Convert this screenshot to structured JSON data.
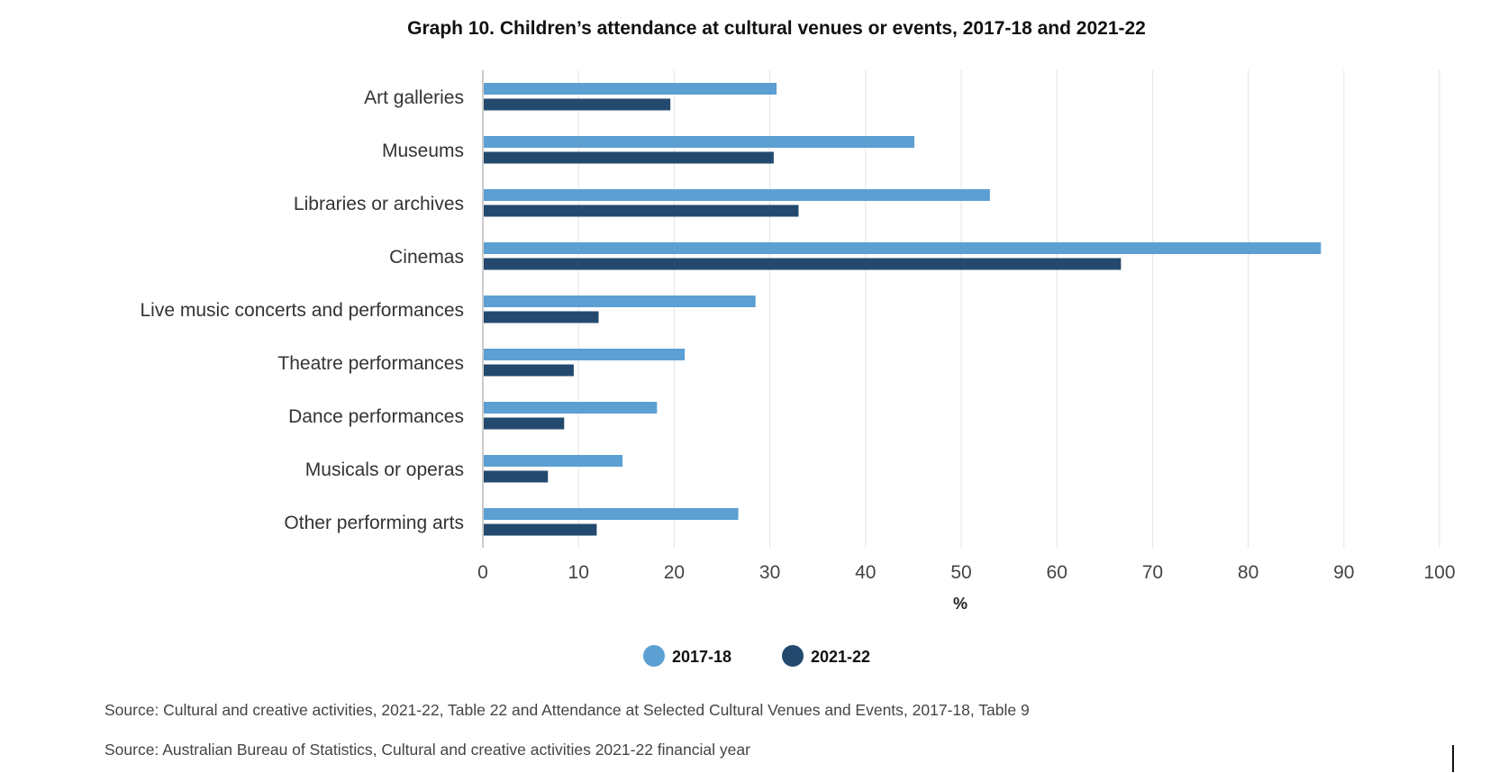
{
  "chart_data": {
    "type": "bar",
    "orientation": "horizontal",
    "title": "Graph 10. Children’s attendance at cultural venues or events, 2017-18 and 2021-22",
    "categories": [
      "Art galleries",
      "Museums",
      "Libraries or archives",
      "Cinemas",
      "Live music concerts and performances",
      "Theatre performances",
      "Dance performances",
      "Musicals or operas",
      "Other performing arts"
    ],
    "series": [
      {
        "name": "2017-18",
        "color": "#5b9fd3",
        "values": [
          30.7,
          45.1,
          53.0,
          87.6,
          28.5,
          21.1,
          18.2,
          14.6,
          26.7
        ]
      },
      {
        "name": "2021-22",
        "color": "#234a6e",
        "values": [
          19.6,
          30.4,
          33.0,
          66.7,
          12.1,
          9.5,
          8.5,
          6.8,
          11.9
        ]
      }
    ],
    "xlabel": "%",
    "ylabel": "",
    "xlim": [
      0,
      100
    ],
    "xticks": [
      "0",
      "10",
      "20",
      "30",
      "40",
      "50",
      "60",
      "70",
      "80",
      "90",
      "100"
    ],
    "grid": "vertical",
    "legend_position": "bottom-center"
  },
  "sources": [
    "Source: Cultural and creative activities, 2021-22, Table 22 and Attendance at Selected Cultural Venues and Events, 2017-18, Table 9",
    "Source: Australian Bureau of Statistics, Cultural and creative activities 2021-22 financial year"
  ]
}
